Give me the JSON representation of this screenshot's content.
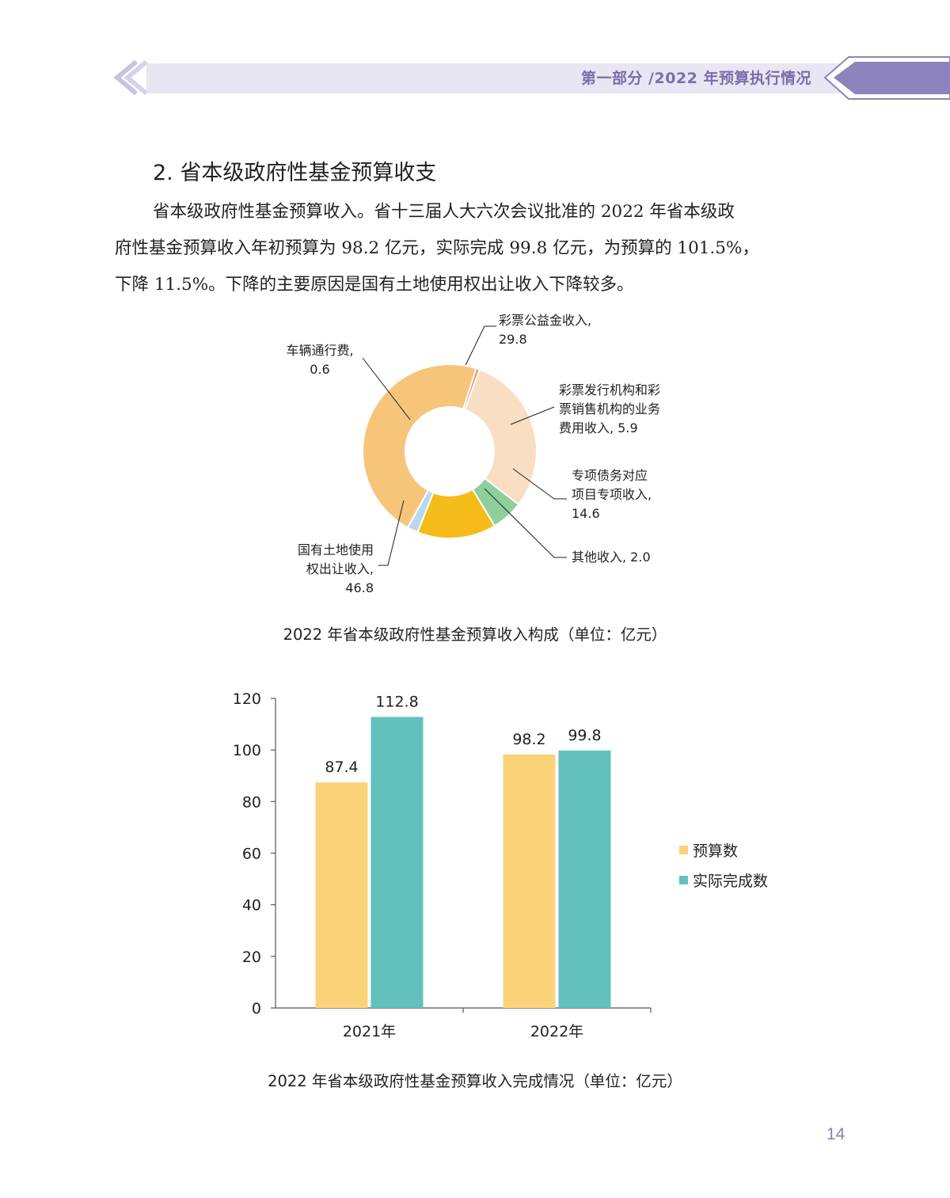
{
  "header": {
    "title": "第一部分 /2022 年预算执行情况",
    "band_color": "#e9e6f3",
    "accent_color": "#8e84bd"
  },
  "section": {
    "heading": "2. 省本级政府性基金预算收支",
    "paragraph_lines": [
      "省本级政府性基金预算收入。省十三届人大六次会议批准的 2022 年省本级政",
      "府性基金预算收入年初预算为 98.2 亿元，实际完成 99.8 亿元，为预算的 101.5%，",
      "下降 11.5%。下降的主要原因是国有土地使用权出让收入下降较多。"
    ]
  },
  "chart_data": [
    {
      "type": "pie",
      "variant": "donut",
      "caption": "2022 年省本级政府性基金预算收入构成（单位：亿元）",
      "slices": [
        {
          "label_lines": [
            "彩票公益金收入,",
            "29.8"
          ],
          "value": 29.8,
          "color": "#f9dec4"
        },
        {
          "label_lines": [
            "彩票发行机构和彩",
            "票销售机构的业务",
            "费用收入, 5.9"
          ],
          "value": 5.9,
          "color": "#8fcf9c"
        },
        {
          "label_lines": [
            "专项债务对应",
            "项目专项收入,",
            "14.6"
          ],
          "value": 14.6,
          "color": "#f5bb18"
        },
        {
          "label_lines": [
            "其他收入, 2.0"
          ],
          "value": 2.0,
          "color": "#b9d7ef"
        },
        {
          "label_lines": [
            "国有土地使用",
            "权出让收入,",
            "46.8"
          ],
          "value": 46.8,
          "color": "#f6c57a"
        },
        {
          "label_lines": [
            "车辆通行费,",
            "0.6"
          ],
          "value": 0.6,
          "color": "#e9835f"
        }
      ]
    },
    {
      "type": "bar",
      "caption": "2022 年省本级政府性基金预算收入完成情况（单位：亿元）",
      "categories": [
        "2021年",
        "2022年"
      ],
      "series": [
        {
          "name": "预算数",
          "values": [
            87.4,
            98.2
          ],
          "color": "#fad378"
        },
        {
          "name": "实际完成数",
          "values": [
            112.8,
            99.8
          ],
          "color": "#62c1bc"
        }
      ],
      "data_labels": [
        [
          "87.4",
          "98.2"
        ],
        [
          "112.8",
          "99.8"
        ]
      ],
      "ylim": [
        0,
        120
      ],
      "yticks": [
        0,
        20,
        40,
        60,
        80,
        100,
        120
      ],
      "ytick_labels": [
        "0",
        "20",
        "40",
        "60",
        "80",
        "100",
        "120"
      ],
      "legend": "right",
      "grid": false
    }
  ],
  "page_number": "14"
}
